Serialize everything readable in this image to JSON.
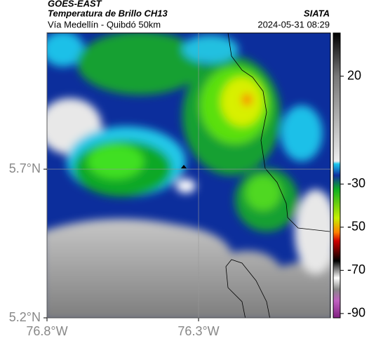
{
  "header": {
    "title": "GOES-EAST",
    "subtitle": "Temperatura de Brillo CH13",
    "source": "SIATA",
    "route": "Vía Medellín - Quibdó 50km",
    "timestamp": "2024-05-31 08:29"
  },
  "map": {
    "xlim": [
      -76.8,
      -75.865
    ],
    "ylim": [
      5.2,
      6.158
    ],
    "xticks": [
      {
        "value": -76.8,
        "label": "76.8°W"
      },
      {
        "value": -76.3,
        "label": "76.3°W"
      }
    ],
    "yticks": [
      {
        "value": 5.2,
        "label": "5.2°N"
      },
      {
        "value": 5.7,
        "label": "5.7°N"
      }
    ],
    "grid": true
  },
  "colorbar": {
    "lim": [
      -92,
      40
    ],
    "ticks": [
      20,
      -30,
      -50,
      -70,
      -90
    ]
  }
}
